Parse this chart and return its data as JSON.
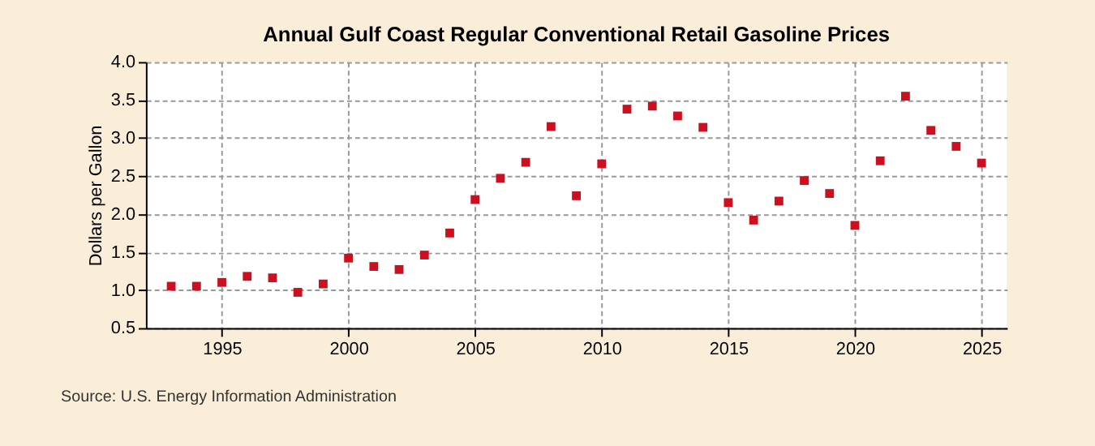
{
  "chart_data": {
    "type": "scatter",
    "title": "Annual Gulf Coast Regular Conventional Retail Gasoline Prices",
    "ylabel": "Dollars per Gallon",
    "x": [
      1993,
      1994,
      1995,
      1996,
      1997,
      1998,
      1999,
      2000,
      2001,
      2002,
      2003,
      2004,
      2005,
      2006,
      2007,
      2008,
      2009,
      2010,
      2011,
      2012,
      2013,
      2014,
      2015,
      2016,
      2017,
      2018,
      2019,
      2020,
      2021,
      2022,
      2023,
      2024,
      2025
    ],
    "series": [
      {
        "color": "#cc1020",
        "values": [
          1.05,
          1.05,
          1.1,
          1.18,
          1.16,
          0.97,
          1.08,
          1.42,
          1.31,
          1.27,
          1.46,
          1.75,
          2.19,
          2.47,
          2.68,
          3.15,
          2.24,
          2.66,
          3.38,
          3.42,
          3.29,
          3.14,
          2.15,
          1.92,
          2.17,
          2.44,
          2.27,
          1.85,
          2.7,
          3.55,
          3.1,
          2.89,
          2.67
        ]
      }
    ],
    "xlim": [
      1992,
      2026
    ],
    "xticks": [
      1995,
      2000,
      2005,
      2010,
      2015,
      2020,
      2025
    ],
    "ylim": [
      0.5,
      4.0
    ],
    "yticks": [
      0.5,
      {
        "value": 1,
        "label": "1.0"
      },
      1.5,
      {
        "value": 2,
        "label": "2.0"
      },
      2.5,
      {
        "value": 3,
        "label": "3.0"
      },
      3.5,
      {
        "value": 4,
        "label": "4.0"
      }
    ],
    "grid": true,
    "marker": "square",
    "annotations": [
      "Source: U.S. Energy Information Administration"
    ]
  }
}
